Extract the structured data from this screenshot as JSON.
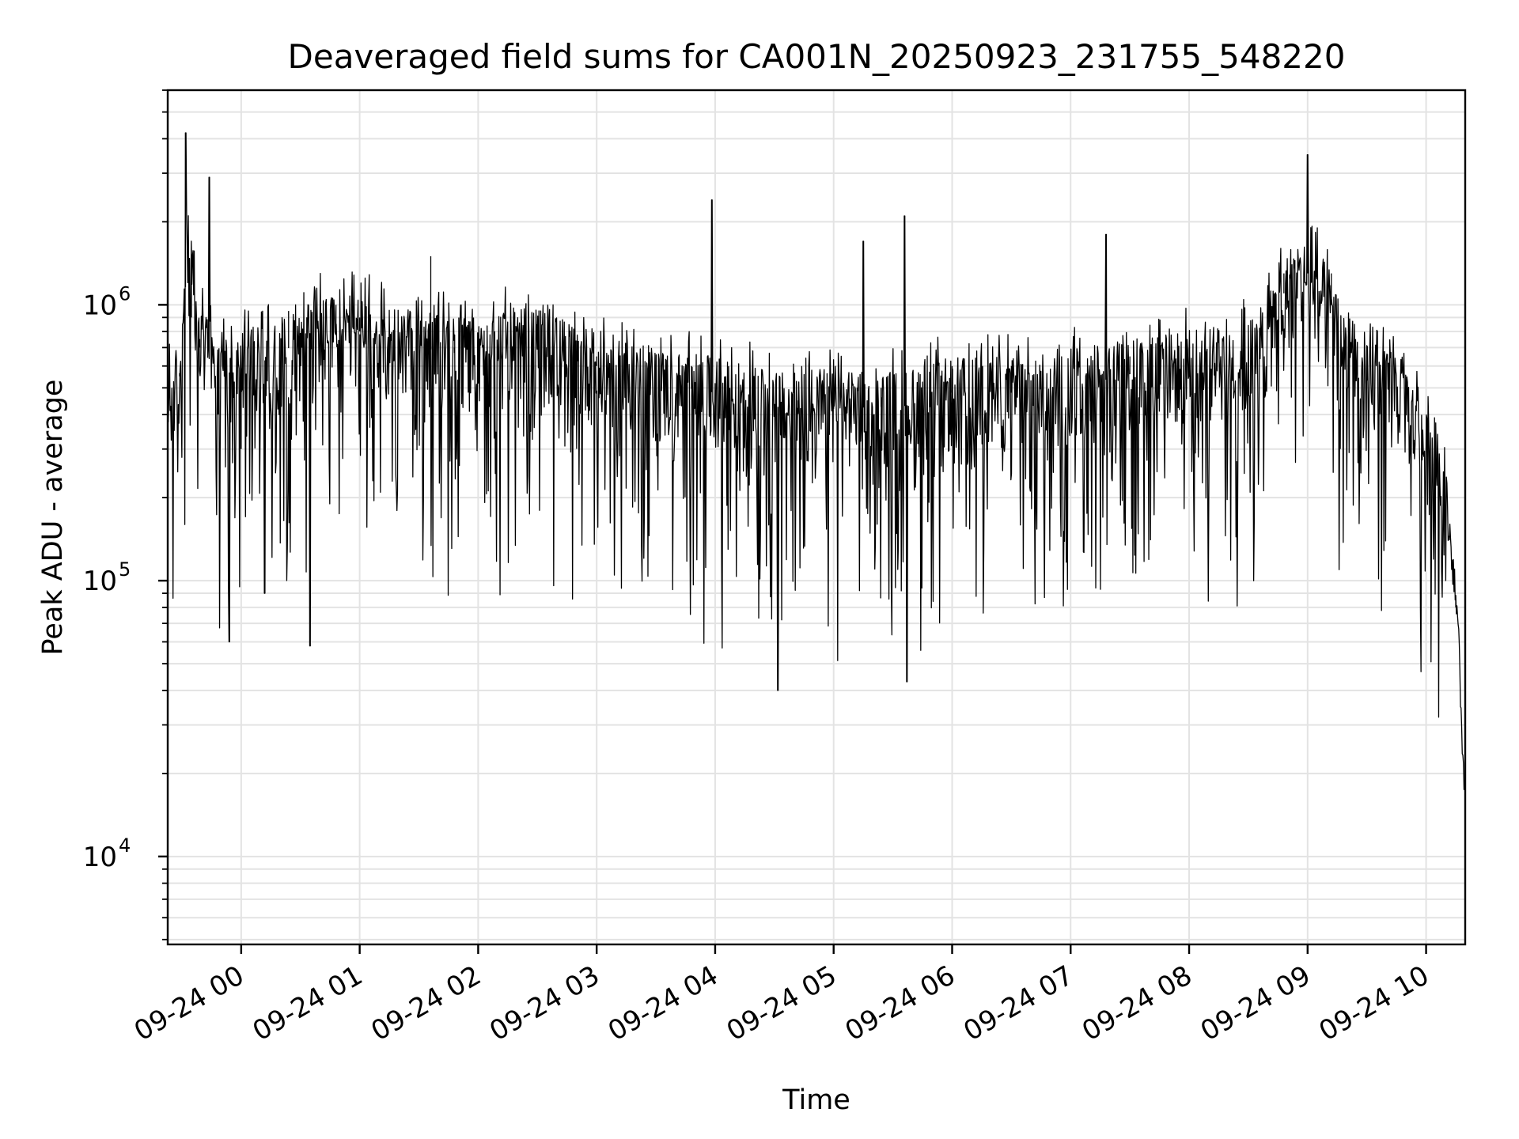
{
  "chart_data": {
    "type": "line",
    "title": "Deaveraged field sums for CA001N_20250923_231755_548220",
    "xlabel": "Time",
    "ylabel": "Peak ADU - average",
    "yscale": "log",
    "ylim": [
      4800,
      6000000
    ],
    "xlim_hours_since_0924_0000": [
      -0.62,
      10.33
    ],
    "x_tick_labels": [
      "09-24 00",
      "09-24 01",
      "09-24 02",
      "09-24 03",
      "09-24 04",
      "09-24 05",
      "09-24 06",
      "09-24 07",
      "09-24 08",
      "09-24 09",
      "09-24 10"
    ],
    "x_tick_hours": [
      0,
      1,
      2,
      3,
      4,
      5,
      6,
      7,
      8,
      9,
      10
    ],
    "y_tick_values": [
      10000,
      100000,
      1000000
    ],
    "y_tick_labels": [
      {
        "base": "10",
        "exp": "4"
      },
      {
        "base": "10",
        "exp": "5"
      },
      {
        "base": "10",
        "exp": "6"
      }
    ],
    "grid": "major and minor",
    "series": [
      {
        "name": "Peak ADU - average",
        "color": "#000000",
        "envelope_points": [
          {
            "t": -0.62,
            "v": 380000
          },
          {
            "t": -0.52,
            "v": 550000
          },
          {
            "t": -0.47,
            "v": 1600000
          },
          {
            "t": -0.47,
            "v": 4200000
          },
          {
            "t": -0.42,
            "v": 900000
          },
          {
            "t": -0.35,
            "v": 700000
          },
          {
            "t": -0.27,
            "v": 2900000
          },
          {
            "t": -0.2,
            "v": 400000
          },
          {
            "t": -0.1,
            "v": 60000
          },
          {
            "t": 0.0,
            "v": 300000
          },
          {
            "t": 0.2,
            "v": 90000
          },
          {
            "t": 0.4,
            "v": 950000
          },
          {
            "t": 0.58,
            "v": 58000
          },
          {
            "t": 0.8,
            "v": 1000000
          },
          {
            "t": 1.0,
            "v": 900000
          },
          {
            "t": 1.5,
            "v": 780000
          },
          {
            "t": 1.6,
            "v": 1500000
          },
          {
            "t": 1.8,
            "v": 700000
          },
          {
            "t": 2.0,
            "v": 650000
          },
          {
            "t": 2.3,
            "v": 820000
          },
          {
            "t": 2.5,
            "v": 850000
          },
          {
            "t": 3.0,
            "v": 650000
          },
          {
            "t": 3.5,
            "v": 550000
          },
          {
            "t": 3.8,
            "v": 600000
          },
          {
            "t": 3.97,
            "v": 2400000
          },
          {
            "t": 4.2,
            "v": 500000
          },
          {
            "t": 4.53,
            "v": 40000
          },
          {
            "t": 4.7,
            "v": 450000
          },
          {
            "t": 5.0,
            "v": 450000
          },
          {
            "t": 5.25,
            "v": 1700000
          },
          {
            "t": 5.4,
            "v": 500000
          },
          {
            "t": 5.6,
            "v": 2100000
          },
          {
            "t": 5.62,
            "v": 43000
          },
          {
            "t": 6.0,
            "v": 600000
          },
          {
            "t": 6.5,
            "v": 600000
          },
          {
            "t": 7.0,
            "v": 550000
          },
          {
            "t": 7.3,
            "v": 1800000
          },
          {
            "t": 7.5,
            "v": 650000
          },
          {
            "t": 8.0,
            "v": 700000
          },
          {
            "t": 8.6,
            "v": 800000
          },
          {
            "t": 8.8,
            "v": 1300000
          },
          {
            "t": 9.0,
            "v": 3500000
          },
          {
            "t": 9.2,
            "v": 1300000
          },
          {
            "t": 9.5,
            "v": 600000
          },
          {
            "t": 9.85,
            "v": 500000
          },
          {
            "t": 10.0,
            "v": 300000
          },
          {
            "t": 10.1,
            "v": 250000
          },
          {
            "t": 10.25,
            "v": 80000
          },
          {
            "t": 10.32,
            "v": 17000
          }
        ]
      }
    ]
  }
}
